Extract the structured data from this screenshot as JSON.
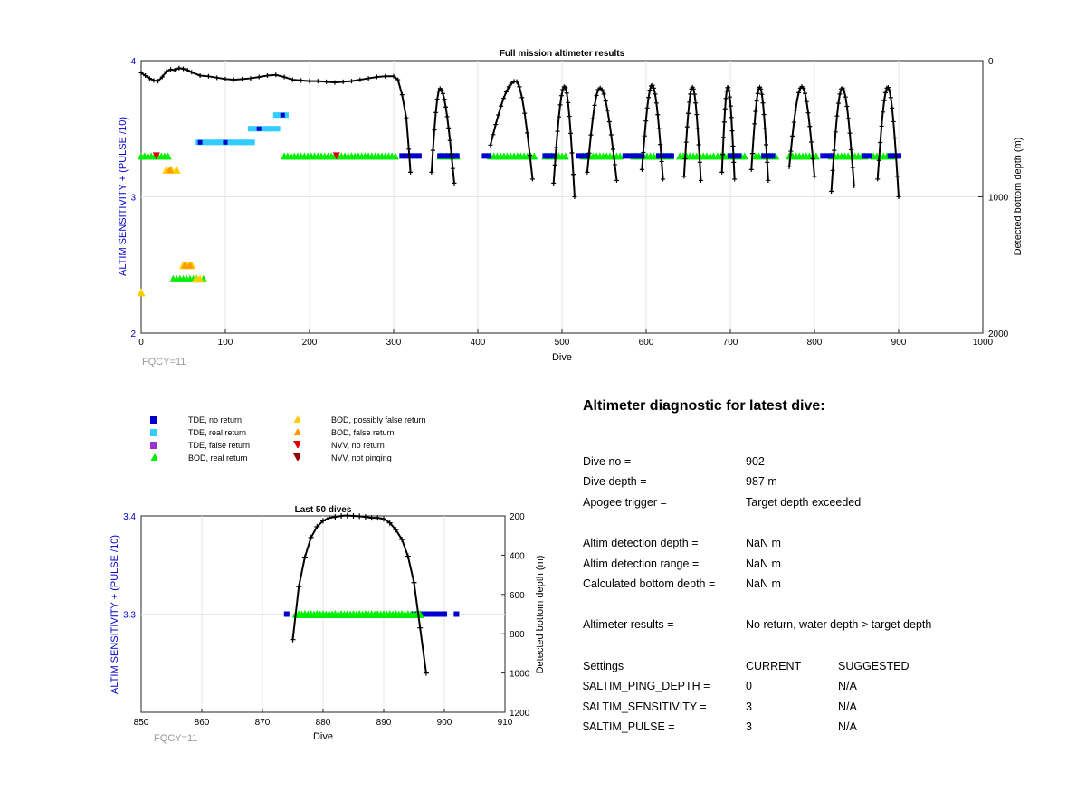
{
  "chart_data": [
    {
      "type": "scatter",
      "title": "Full mission altimeter results",
      "xlabel": "Dive",
      "ylabel_left": "ALTIM SENSITIVITY + (PULSE /10)",
      "ylabel_right": "Detected bottom depth (m)",
      "xlim": [
        0,
        1000
      ],
      "ylim_left": [
        2,
        4
      ],
      "ylim_right": [
        0,
        2000
      ],
      "right_axis_reversed": true,
      "xticks": [
        "0",
        "100",
        "200",
        "300",
        "400",
        "500",
        "600",
        "700",
        "800",
        "900",
        "1000"
      ],
      "yticks_left": [
        "2",
        "3",
        "4"
      ],
      "yticks_right": [
        "0",
        "1000",
        "2000"
      ],
      "note": "FQCY=11",
      "grid": true,
      "series": [
        {
          "name": "TDE, no return",
          "color": "#0000CC",
          "marker": "square",
          "segments": [
            [
              310,
              330
            ],
            [
              355,
              375
            ],
            [
              408,
              415
            ],
            [
              480,
              490
            ],
            [
              520,
              530
            ],
            [
              575,
              595
            ],
            [
              615,
              630
            ],
            [
              700,
              712
            ],
            [
              740,
              752
            ],
            [
              810,
              820
            ],
            [
              860,
              868
            ],
            [
              890,
              900
            ]
          ],
          "y": 3.3
        },
        {
          "name": "TDE, real return",
          "color": "#33CCFF",
          "marker": "square",
          "segments": [
            [
              68,
              135
            ],
            [
              130,
              165
            ],
            [
              160,
              175
            ]
          ],
          "y_values": [
            3.4,
            3.5,
            3.6
          ]
        },
        {
          "name": "BOD, real return",
          "color": "#00EE00",
          "marker": "triangle-up",
          "segments": [
            [
              0,
              33
            ],
            [
              170,
              305
            ],
            [
              355,
              375
            ],
            [
              415,
              470
            ],
            [
              480,
              505
            ],
            [
              525,
              570
            ],
            [
              585,
              630
            ],
            [
              640,
              680
            ],
            [
              685,
              720
            ],
            [
              730,
              755
            ],
            [
              770,
              805
            ],
            [
              820,
              860
            ],
            [
              870,
              895
            ]
          ],
          "y": 3.3,
          "extra": [
            [
              38,
              75,
              2.4
            ]
          ]
        },
        {
          "name": "BOD, possibly false return",
          "color": "#FFCC00",
          "marker": "triangle-up",
          "points": [
            [
              30,
              3.2
            ],
            [
              36,
              3.2
            ],
            [
              42,
              3.2
            ],
            [
              0,
              2.3
            ],
            [
              50,
              2.5
            ],
            [
              55,
              2.5
            ],
            [
              60,
              2.5
            ],
            [
              65,
              2.4
            ],
            [
              70,
              2.4
            ]
          ]
        },
        {
          "name": "NVV, no return",
          "color": "#DD0000",
          "marker": "triangle-down",
          "points": [
            [
              18,
              3.3
            ],
            [
              232,
              3.3
            ]
          ]
        },
        {
          "name": "Detected bottom depth",
          "color": "#000000",
          "marker": "plus",
          "axis": "right",
          "description": "per-dive detected bottom depth (m)"
        }
      ]
    },
    {
      "type": "scatter",
      "title": "Last 50 dives",
      "xlabel": "Dive",
      "ylabel_left": "ALTIM SENSITIVITY + (PULSE /10)",
      "ylabel_right": "Detected bottom depth (m)",
      "xlim": [
        850,
        910
      ],
      "ylim_left": [
        3.2,
        3.4
      ],
      "ylim_right": [
        200,
        1200
      ],
      "right_axis_reversed": true,
      "xticks": [
        "850",
        "860",
        "870",
        "880",
        "890",
        "900",
        "910"
      ],
      "yticks_left": [
        "3.3",
        "3.4"
      ],
      "yticks_right": [
        "200",
        "400",
        "600",
        "800",
        "1000",
        "1200"
      ],
      "note": "FQCY=11",
      "grid": true,
      "tde_no_return": {
        "x": [
          874,
          895,
          896,
          897,
          898,
          899,
          900,
          902
        ],
        "y": 3.3
      },
      "bod_real_return": {
        "x": [
          876,
          877,
          878,
          879,
          880,
          881,
          882,
          883,
          884,
          885,
          886,
          887,
          888,
          889,
          890,
          891,
          892,
          893,
          894,
          895,
          896
        ],
        "y": 3.3
      },
      "depth": {
        "x": [
          875,
          876,
          877,
          878,
          879,
          880,
          881,
          882,
          883,
          884,
          885,
          886,
          887,
          888,
          889,
          890,
          891,
          892,
          893,
          894,
          895,
          896,
          897
        ],
        "y": [
          830,
          560,
          410,
          310,
          255,
          225,
          210,
          205,
          200,
          198,
          200,
          202,
          205,
          210,
          210,
          215,
          235,
          270,
          320,
          405,
          540,
          770,
          1000
        ]
      }
    }
  ],
  "legend": {
    "items": [
      {
        "label": "TDE, no return",
        "color": "#0000CC",
        "marker": "square"
      },
      {
        "label": "TDE, real return",
        "color": "#33CCFF",
        "marker": "square"
      },
      {
        "label": "TDE, false return",
        "color": "#9933CC",
        "marker": "square"
      },
      {
        "label": "BOD, real return",
        "color": "#00EE00",
        "marker": "triangle-up"
      },
      {
        "label": "BOD, possibly false return",
        "color": "#FFCC00",
        "marker": "triangle-up"
      },
      {
        "label": "BOD, false return",
        "color": "#FF9900",
        "marker": "triangle-up"
      },
      {
        "label": "NVV, no return",
        "color": "#DD0000",
        "marker": "triangle-down"
      },
      {
        "label": "NVV, not pinging",
        "color": "#990000",
        "marker": "triangle-down"
      }
    ]
  },
  "diagnostic": {
    "title": "Altimeter diagnostic for latest dive:",
    "dive_no_label": "Dive no =",
    "dive_no": "902",
    "dive_depth_label": "Dive depth =",
    "dive_depth": "987 m",
    "apogee_label": "Apogee trigger =",
    "apogee": "Target depth exceeded",
    "det_depth_label": "Altim detection depth =",
    "det_depth": "NaN m",
    "det_range_label": "Altim detection range =",
    "det_range": "NaN m",
    "calc_depth_label": "Calculated bottom depth =",
    "calc_depth": "NaN m",
    "results_label": "Altimeter results =",
    "results": "No return, water depth > target depth",
    "settings_label": "Settings",
    "current_label": "CURRENT",
    "suggested_label": "SUGGESTED",
    "ping_label": "$ALTIM_PING_DEPTH =",
    "ping_current": "0",
    "ping_suggested": "N/A",
    "sens_label": "$ALTIM_SENSITIVITY =",
    "sens_current": "3",
    "sens_suggested": "N/A",
    "pulse_label": "$ALTIM_PULSE =",
    "pulse_current": "3",
    "pulse_suggested": "N/A"
  }
}
